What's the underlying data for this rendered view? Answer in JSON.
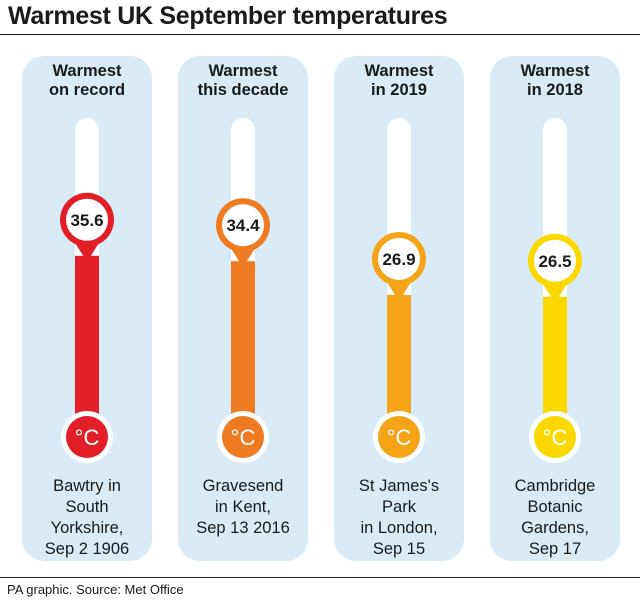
{
  "title": "Warmest UK September temperatures",
  "source": "PA graphic. Source: Met Office",
  "unit_label": "°C",
  "chart_data": {
    "type": "bar",
    "title": "Warmest UK September temperatures",
    "categories": [
      "Warmest on record",
      "Warmest this decade",
      "Warmest in 2019",
      "Warmest in 2018"
    ],
    "series": [
      {
        "values": [
          35.6,
          34.4,
          26.9,
          26.5
        ]
      }
    ],
    "colors": [
      "#e21f26",
      "#ee7a22",
      "#f4a416",
      "#fbd800"
    ],
    "ylim": [
      0,
      37
    ]
  },
  "panels": [
    {
      "heading_lines": [
        "Warmest",
        "on record"
      ],
      "value_label": "35.6",
      "caption_lines": [
        "Bawtry in",
        "South",
        "Yorkshire,",
        "Sep 2 1906"
      ]
    },
    {
      "heading_lines": [
        "Warmest",
        "this decade"
      ],
      "value_label": "34.4",
      "caption_lines": [
        "Gravesend",
        "in Kent,",
        "Sep 13 2016"
      ]
    },
    {
      "heading_lines": [
        "Warmest",
        "in 2019"
      ],
      "value_label": "26.9",
      "caption_lines": [
        "St James's",
        "Park",
        "in London,",
        "Sep 15"
      ]
    },
    {
      "heading_lines": [
        "Warmest",
        "in 2018"
      ],
      "value_label": "26.5",
      "caption_lines": [
        "Cambridge",
        "Botanic",
        "Gardens,",
        "Sep 17"
      ]
    }
  ]
}
